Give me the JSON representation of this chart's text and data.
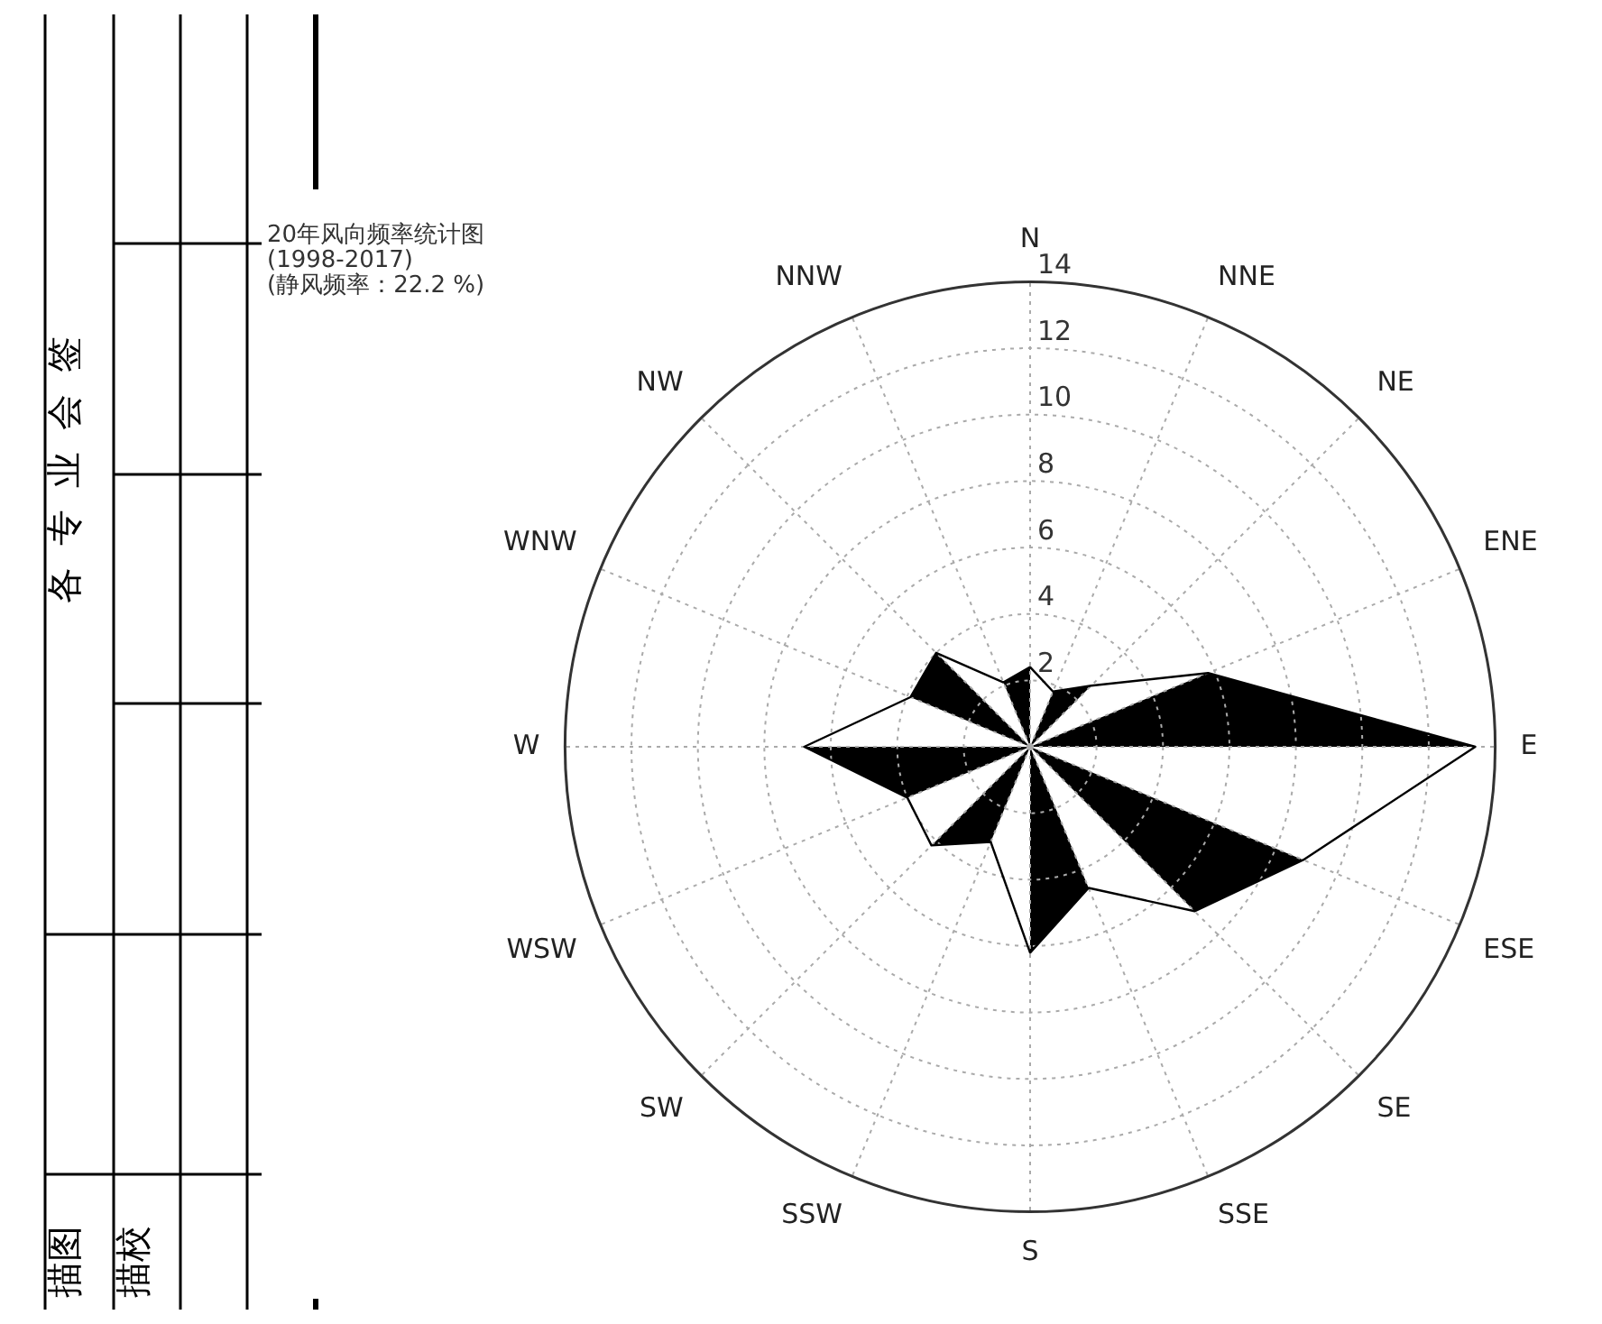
{
  "chart_data": {
    "type": "radar",
    "title": "20年风向频率统计图",
    "subtitle": "(1998-2017)",
    "annotations": [
      "(静风频率：22.2 %)",
      "各专业会签",
      "描图",
      "描校"
    ],
    "categories": [
      "N",
      "NNE",
      "NE",
      "ENE",
      "E",
      "ESE",
      "SE",
      "SSE",
      "S",
      "SSW",
      "SW",
      "WSW",
      "W",
      "WNW",
      "NW",
      "NNW"
    ],
    "series": [
      {
        "color": "#000000",
        "values": [
          2.4,
          1.8,
          2.6,
          5.8,
          13.4,
          8.9,
          7.0,
          4.6,
          6.2,
          3.1,
          4.2,
          4.0,
          6.8,
          3.9,
          4.0,
          2.1
        ]
      }
    ],
    "ylim": [
      0,
      14
    ],
    "yticks": [
      2,
      4,
      6,
      8,
      10,
      12,
      14
    ],
    "grid": true,
    "legend": false,
    "marker": "none",
    "line_style": "solid"
  }
}
